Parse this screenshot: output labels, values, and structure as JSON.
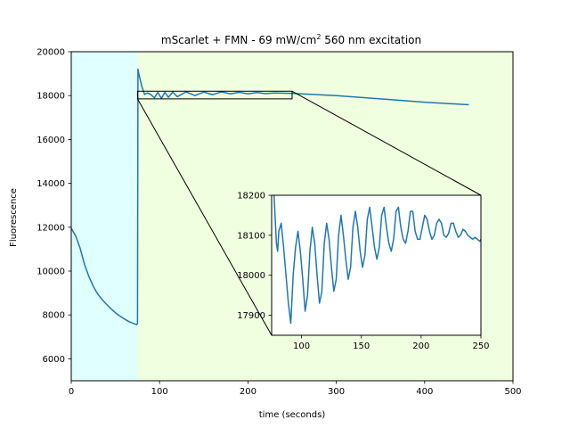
{
  "chart_data": {
    "type": "line",
    "title": "mScarlet + FMN - 69 mW/cm",
    "title_superscript": "2",
    "title_suffix": " 560 nm excitation",
    "xlabel": "time (seconds)",
    "ylabel": "Fluorescence",
    "xlim": [
      0,
      500
    ],
    "ylim": [
      5000,
      20000
    ],
    "xticks": [
      0,
      100,
      200,
      300,
      400,
      500
    ],
    "yticks": [
      6000,
      8000,
      10000,
      12000,
      14000,
      16000,
      18000,
      20000
    ],
    "grid": false,
    "line_color": "#1f77b4",
    "shaded_regions": [
      {
        "x_start": 0,
        "x_end": 75,
        "color": "#e0ffff"
      },
      {
        "x_start": 75,
        "x_end": 500,
        "color": "#f0ffe0"
      }
    ],
    "series": [
      {
        "x": [
          0,
          5,
          10,
          15,
          20,
          25,
          30,
          35,
          40,
          45,
          50,
          55,
          60,
          65,
          70,
          74,
          75,
          75.5,
          77,
          80,
          83,
          86,
          90,
          94,
          98,
          102,
          106,
          110,
          115,
          120,
          130,
          140,
          150,
          160,
          170,
          180,
          190,
          200,
          210,
          220,
          230,
          240,
          250,
          300,
          350,
          400,
          450
        ],
        "y": [
          11950,
          11600,
          11050,
          10300,
          9750,
          9300,
          8950,
          8700,
          8480,
          8280,
          8100,
          7950,
          7820,
          7700,
          7620,
          7560,
          7600,
          19200,
          18900,
          18400,
          18050,
          18120,
          18050,
          17900,
          18150,
          17870,
          18150,
          17920,
          18160,
          17950,
          18170,
          18000,
          18160,
          18040,
          18170,
          18080,
          18150,
          18080,
          18140,
          18090,
          18120,
          18110,
          18100,
          18000,
          17850,
          17700,
          17580
        ]
      }
    ],
    "zoom_box": {
      "xlim": [
        75,
        250
      ],
      "ylim": [
        17850,
        18200
      ]
    },
    "inset": {
      "xlim": [
        75,
        250
      ],
      "ylim": [
        17850,
        18200
      ],
      "xticks": [
        100,
        150,
        200,
        250
      ],
      "yticks": [
        17900,
        18000,
        18100,
        18200
      ],
      "series": [
        {
          "x": [
            77,
            79,
            80,
            81,
            83,
            85,
            87,
            89,
            91,
            93,
            95,
            97,
            99,
            101,
            103,
            105,
            107,
            109,
            111,
            113,
            115,
            117,
            119,
            121,
            123,
            125,
            127,
            129,
            131,
            133,
            135,
            137,
            139,
            141,
            143,
            145,
            147,
            149,
            151,
            153,
            155,
            157,
            159,
            161,
            163,
            165,
            167,
            169,
            171,
            173,
            175,
            177,
            179,
            181,
            183,
            185,
            187,
            189,
            191,
            193,
            195,
            197,
            199,
            201,
            203,
            205,
            207,
            209,
            211,
            213,
            215,
            217,
            219,
            221,
            223,
            225,
            227,
            229,
            231,
            233,
            235,
            237,
            239,
            241,
            243,
            245,
            247,
            249,
            250
          ],
          "y": [
            18200,
            18080,
            18060,
            18110,
            18130,
            18070,
            18000,
            17930,
            17880,
            18000,
            18070,
            18110,
            18060,
            17990,
            17910,
            17950,
            18060,
            18120,
            18080,
            18000,
            17930,
            17960,
            18080,
            18130,
            18090,
            18020,
            17960,
            17990,
            18100,
            18150,
            18100,
            18040,
            17990,
            18020,
            18120,
            18160,
            18120,
            18060,
            18020,
            18050,
            18140,
            18170,
            18120,
            18070,
            18040,
            18070,
            18150,
            18170,
            18120,
            18080,
            18060,
            18090,
            18160,
            18170,
            18120,
            18090,
            18080,
            18110,
            18160,
            18160,
            18110,
            18090,
            18090,
            18120,
            18150,
            18140,
            18110,
            18090,
            18100,
            18130,
            18140,
            18130,
            18100,
            18095,
            18105,
            18130,
            18130,
            18110,
            18095,
            18100,
            18115,
            18110,
            18100,
            18095,
            18090,
            18095,
            18090,
            18085,
            18090
          ]
        }
      ]
    }
  }
}
